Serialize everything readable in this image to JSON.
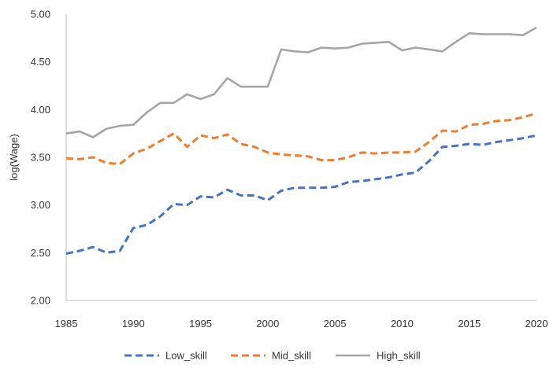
{
  "chart_data": {
    "type": "line",
    "title": "",
    "xlabel": "",
    "ylabel": "log(Wage)",
    "xlim": [
      1985,
      2020
    ],
    "ylim": [
      2.0,
      5.0
    ],
    "x_ticks": [
      1985,
      1990,
      1995,
      2000,
      2005,
      2010,
      2015,
      2020
    ],
    "y_ticks": [
      "2.00",
      "2.50",
      "3.00",
      "3.50",
      "4.00",
      "4.50",
      "5.00"
    ],
    "grid": false,
    "legend_position": "bottom",
    "x": [
      1985,
      1986,
      1987,
      1988,
      1989,
      1990,
      1991,
      1992,
      1993,
      1994,
      1995,
      1996,
      1997,
      1998,
      1999,
      2000,
      2001,
      2002,
      2003,
      2004,
      2005,
      2006,
      2007,
      2008,
      2009,
      2010,
      2011,
      2012,
      2013,
      2014,
      2015,
      2016,
      2017,
      2018,
      2019,
      2020
    ],
    "series": [
      {
        "name": "Low_skill",
        "color": "#4472C4",
        "style": "dashed",
        "values": [
          2.49,
          2.52,
          2.56,
          2.5,
          2.52,
          2.76,
          2.79,
          2.88,
          3.01,
          3.0,
          3.09,
          3.08,
          3.16,
          3.1,
          3.1,
          3.05,
          3.15,
          3.18,
          3.18,
          3.18,
          3.19,
          3.24,
          3.25,
          3.27,
          3.29,
          3.32,
          3.34,
          3.46,
          3.61,
          3.62,
          3.64,
          3.63,
          3.66,
          3.68,
          3.7,
          3.73
        ]
      },
      {
        "name": "Mid_skill",
        "color": "#ED7D31",
        "style": "dashed",
        "values": [
          3.49,
          3.48,
          3.5,
          3.44,
          3.43,
          3.54,
          3.59,
          3.67,
          3.75,
          3.61,
          3.73,
          3.7,
          3.74,
          3.64,
          3.61,
          3.55,
          3.53,
          3.52,
          3.51,
          3.47,
          3.47,
          3.5,
          3.55,
          3.54,
          3.55,
          3.55,
          3.56,
          3.66,
          3.78,
          3.77,
          3.84,
          3.85,
          3.88,
          3.89,
          3.92,
          3.96
        ]
      },
      {
        "name": "High_skill",
        "color": "#A5A5A5",
        "style": "solid",
        "values": [
          3.75,
          3.77,
          3.71,
          3.8,
          3.83,
          3.84,
          3.97,
          4.07,
          4.07,
          4.16,
          4.11,
          4.16,
          4.33,
          4.24,
          4.24,
          4.24,
          4.63,
          4.61,
          4.6,
          4.65,
          4.64,
          4.65,
          4.69,
          4.7,
          4.71,
          4.62,
          4.65,
          4.63,
          4.61,
          4.71,
          4.8,
          4.79,
          4.79,
          4.79,
          4.78,
          4.86
        ]
      }
    ]
  }
}
